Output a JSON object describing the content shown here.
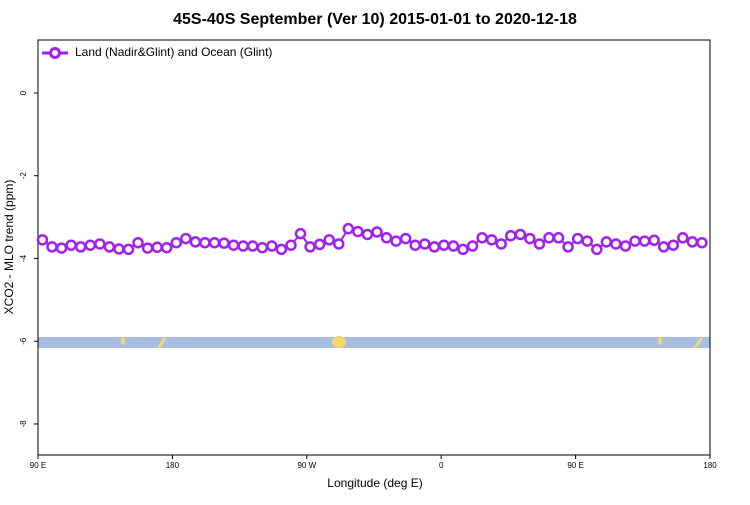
{
  "chart_data": {
    "type": "line",
    "title": "45S-40S September (Ver 10)   2015-01-01 to 2020-12-18",
    "x_label": "Longitude (deg E)",
    "y_label": "XCO2 - MLO trend (ppm)",
    "xlim": [
      90,
      540
    ],
    "ylim": [
      -8.75,
      1.28
    ],
    "xticks": [
      {
        "value": 90,
        "label": "90 E"
      },
      {
        "value": 180,
        "label": "180"
      },
      {
        "value": 270,
        "label": "90 W"
      },
      {
        "value": 360,
        "label": "0"
      },
      {
        "value": 450,
        "label": "90 E"
      },
      {
        "value": 540,
        "label": "180"
      }
    ],
    "yticks": [
      -8,
      -6,
      -4,
      -2,
      0
    ],
    "legend": "top-left",
    "series": [
      {
        "name": "Land (Nadir&Glint) and Ocean (Glint)",
        "color": "#a020f0",
        "x": [
          93,
          99.4,
          105.8,
          112.2,
          118.6,
          125,
          131.4,
          137.8,
          144.2,
          150.6,
          157,
          163.4,
          169.8,
          176.2,
          182.6,
          189,
          195.4,
          201.8,
          208.2,
          214.6,
          221,
          227.4,
          233.8,
          240.2,
          246.6,
          253,
          259.4,
          265.8,
          272.2,
          278.6,
          285,
          291.4,
          297.8,
          304.2,
          310.6,
          317,
          323.4,
          329.8,
          336.2,
          342.6,
          349,
          355.4,
          361.8,
          368.2,
          374.6,
          381,
          387.4,
          393.8,
          400.2,
          406.6,
          413,
          419.4,
          425.8,
          432.2,
          438.6,
          445,
          451.4,
          457.8,
          464.2,
          470.6,
          477,
          483.4,
          489.8,
          496.2,
          502.6,
          509,
          515.4,
          521.8,
          528.2,
          534.6
        ],
        "values": [
          -3.55,
          -3.72,
          -3.75,
          -3.68,
          -3.72,
          -3.68,
          -3.65,
          -3.72,
          -3.77,
          -3.78,
          -3.62,
          -3.75,
          -3.73,
          -3.74,
          -3.62,
          -3.52,
          -3.6,
          -3.62,
          -3.62,
          -3.63,
          -3.68,
          -3.7,
          -3.7,
          -3.74,
          -3.7,
          -3.78,
          -3.68,
          -3.4,
          -3.72,
          -3.66,
          -3.55,
          -3.65,
          -3.28,
          -3.35,
          -3.42,
          -3.36,
          -3.5,
          -3.58,
          -3.52,
          -3.68,
          -3.65,
          -3.72,
          -3.68,
          -3.7,
          -3.78,
          -3.7,
          -3.5,
          -3.55,
          -3.65,
          -3.45,
          -3.42,
          -3.52,
          -3.65,
          -3.5,
          -3.5,
          -3.72,
          -3.52,
          -3.58,
          -3.78,
          -3.6,
          -3.65,
          -3.7,
          -3.58,
          -3.58,
          -3.56,
          -3.72,
          -3.68,
          -3.5,
          -3.6,
          -3.62
        ]
      }
    ]
  }
}
